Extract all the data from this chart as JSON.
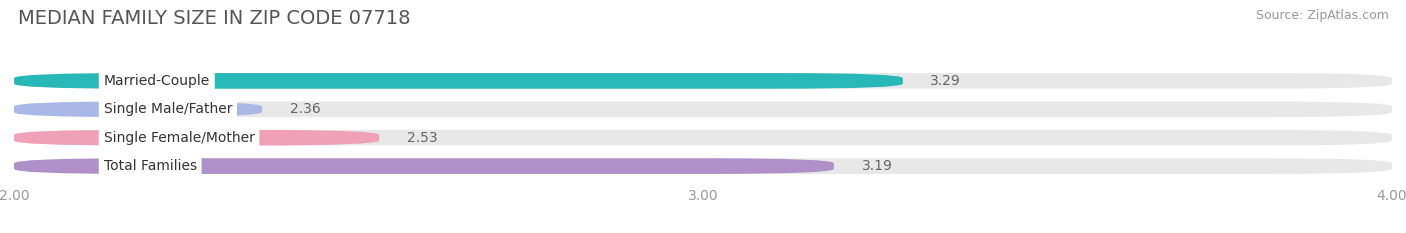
{
  "title": "MEDIAN FAMILY SIZE IN ZIP CODE 07718",
  "source": "Source: ZipAtlas.com",
  "categories": [
    "Married-Couple",
    "Single Male/Father",
    "Single Female/Mother",
    "Total Families"
  ],
  "values": [
    3.29,
    2.36,
    2.53,
    3.19
  ],
  "bar_colors": [
    "#29b8b8",
    "#aab8e8",
    "#f0a0b8",
    "#b090c8"
  ],
  "xlim_min": 2.0,
  "xlim_max": 4.0,
  "xticks": [
    2.0,
    3.0,
    4.0
  ],
  "xtick_labels": [
    "2.00",
    "3.00",
    "4.00"
  ],
  "background_color": "#ffffff",
  "bar_bg_color": "#e8e8e8",
  "title_fontsize": 14,
  "source_fontsize": 9,
  "tick_fontsize": 10,
  "label_fontsize": 10,
  "value_fontsize": 10,
  "bar_height": 0.55,
  "bar_gap": 0.18
}
